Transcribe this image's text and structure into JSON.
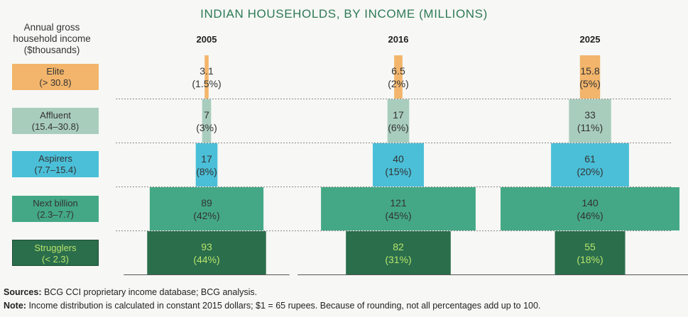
{
  "chart_data": {
    "type": "bar",
    "title": "INDIAN HOUSEHOLDS, BY INCOME (MILLIONS)",
    "ylabel": "Annual gross household income ($thousands)",
    "categories": [
      {
        "name": "Elite",
        "range": "(> 30.8)",
        "color": "#f2b56b",
        "textColor": "#333333"
      },
      {
        "name": "Affluent",
        "range": "(15.4–30.8)",
        "color": "#a9cdbd",
        "textColor": "#333333"
      },
      {
        "name": "Aspirers",
        "range": "(7.7–15.4)",
        "color": "#4bbfd8",
        "textColor": "#333333"
      },
      {
        "name": "Next billion",
        "range": "(2.3–7.7)",
        "color": "#44a887",
        "textColor": "#333333"
      },
      {
        "name": "Strugglers",
        "range": "(< 2.3)",
        "color": "#2a6e4c",
        "textColor": "#b8e36a"
      }
    ],
    "series": [
      {
        "name": "2005",
        "values": [
          3.1,
          7,
          17,
          89,
          93
        ],
        "labels": [
          "3.1",
          "7",
          "17",
          "89",
          "93"
        ],
        "percents": [
          "(1.5%)",
          "(3%)",
          "(8%)",
          "(42%)",
          "(44%)"
        ]
      },
      {
        "name": "2016",
        "values": [
          6.5,
          17,
          40,
          121,
          82
        ],
        "labels": [
          "6.5",
          "17",
          "40",
          "121",
          "82"
        ],
        "percents": [
          "(2%)",
          "(6%)",
          "(15%)",
          "(45%)",
          "(31%)"
        ]
      },
      {
        "name": "2025",
        "values": [
          15.8,
          33,
          61,
          140,
          55
        ],
        "labels": [
          "15.8",
          "33",
          "61",
          "140",
          "55"
        ],
        "percents": [
          "(5%)",
          "(11%)",
          "(20%)",
          "(46%)",
          "(18%)"
        ]
      }
    ]
  },
  "footnotes": {
    "sources_label": "Sources:",
    "sources_text": "BCG CCI proprietary income database; BCG analysis.",
    "note_label": "Note:",
    "note_text": "Income distribution is calculated in constant 2015 dollars; $1 = 65 rupees. Because of rounding, not all percentages add up to 100."
  }
}
